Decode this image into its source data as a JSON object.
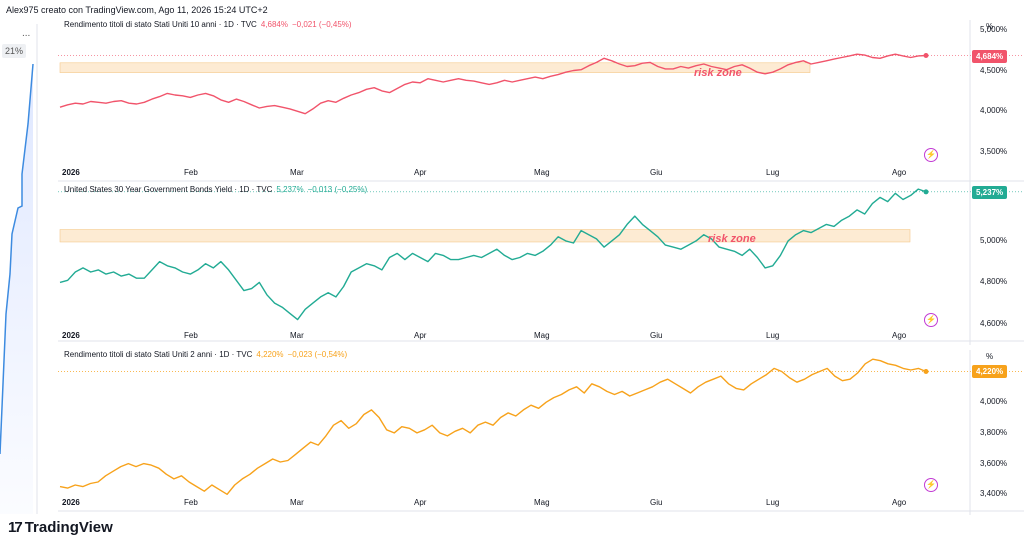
{
  "header": "Alex975 creato con TradingView.com, Ago 11, 2026 15:24 UTC+2",
  "left": {
    "pct": "21%",
    "dots": "...",
    "year": "2026"
  },
  "footer": {
    "brand": "TradingView",
    "logo": "17"
  },
  "risk_label": "risk zone",
  "chart_data": [
    {
      "type": "line",
      "title": "Rendimento titoli di stato Stati Uniti 10 anni · 1D · TVC",
      "value": "4,684%",
      "change": "−0,021 (−0,45%)",
      "color": "#f1546b",
      "unit": "%",
      "ylim": [
        3.28,
        5.12
      ],
      "yticks": [
        "5,000%",
        "4,500%",
        "4,000%",
        "3,500%"
      ],
      "ytick_values": [
        5.0,
        4.5,
        4.0,
        3.5
      ],
      "x_labels": [
        "2026",
        "Feb",
        "Mar",
        "Apr",
        "Mag",
        "Giu",
        "Lug",
        "Ago"
      ],
      "risk_zone": [
        4.475,
        4.595
      ],
      "values": [
        4.05,
        4.08,
        4.1,
        4.09,
        4.12,
        4.11,
        4.1,
        4.12,
        4.13,
        4.1,
        4.09,
        4.11,
        4.15,
        4.18,
        4.22,
        4.2,
        4.19,
        4.17,
        4.2,
        4.22,
        4.19,
        4.14,
        4.11,
        4.15,
        4.12,
        4.08,
        4.04,
        4.06,
        4.07,
        4.05,
        4.03,
        4.0,
        3.97,
        4.03,
        4.1,
        4.13,
        4.11,
        4.16,
        4.2,
        4.23,
        4.27,
        4.29,
        4.25,
        4.23,
        4.28,
        4.33,
        4.36,
        4.35,
        4.4,
        4.38,
        4.36,
        4.38,
        4.4,
        4.38,
        4.37,
        4.35,
        4.33,
        4.35,
        4.38,
        4.36,
        4.38,
        4.4,
        4.42,
        4.4,
        4.43,
        4.45,
        4.48,
        4.5,
        4.51,
        4.56,
        4.6,
        4.65,
        4.62,
        4.58,
        4.55,
        4.56,
        4.59,
        4.6,
        4.55,
        4.52,
        4.52,
        4.55,
        4.53,
        4.56,
        4.58,
        4.55,
        4.53,
        4.51,
        4.55,
        4.57,
        4.53,
        4.48,
        4.46,
        4.48,
        4.52,
        4.57,
        4.6,
        4.62,
        4.58,
        4.6,
        4.62,
        4.64,
        4.66,
        4.68,
        4.7,
        4.69,
        4.66,
        4.65,
        4.68,
        4.7,
        4.68,
        4.66,
        4.68,
        4.684
      ]
    },
    {
      "type": "line",
      "title": "United States 30 Year Government Bonds Yield · 1D · TVC",
      "value": "5,237%",
      "change": "−0,013 (−0,25%)",
      "color": "#22ab94",
      "unit": "%",
      "ylim": [
        4.57,
        5.27
      ],
      "yticks": [
        "5,200%",
        "5,000%",
        "4,800%",
        "4,600%"
      ],
      "ytick_values": [
        5.2,
        5.0,
        4.8,
        4.6
      ],
      "x_labels": [
        "2026",
        "Feb",
        "Mar",
        "Apr",
        "Mag",
        "Giu",
        "Lug",
        "Ago"
      ],
      "risk_zone": [
        4.995,
        5.055
      ],
      "values": [
        4.8,
        4.81,
        4.85,
        4.87,
        4.85,
        4.86,
        4.84,
        4.85,
        4.83,
        4.84,
        4.82,
        4.82,
        4.86,
        4.9,
        4.88,
        4.87,
        4.85,
        4.84,
        4.86,
        4.89,
        4.87,
        4.9,
        4.86,
        4.81,
        4.76,
        4.77,
        4.8,
        4.74,
        4.7,
        4.68,
        4.65,
        4.62,
        4.67,
        4.7,
        4.73,
        4.75,
        4.73,
        4.78,
        4.85,
        4.87,
        4.89,
        4.88,
        4.86,
        4.92,
        4.94,
        4.91,
        4.94,
        4.92,
        4.9,
        4.94,
        4.93,
        4.91,
        4.91,
        4.92,
        4.93,
        4.92,
        4.94,
        4.96,
        4.93,
        4.91,
        4.92,
        4.94,
        4.93,
        4.95,
        4.98,
        5.02,
        5.0,
        4.99,
        5.05,
        5.03,
        5.01,
        4.97,
        5.0,
        5.03,
        5.08,
        5.12,
        5.08,
        5.05,
        5.02,
        4.98,
        4.97,
        4.96,
        4.98,
        5.0,
        5.03,
        5.01,
        4.97,
        4.96,
        4.95,
        4.93,
        4.96,
        4.92,
        4.87,
        4.88,
        4.93,
        5.0,
        5.03,
        5.05,
        5.04,
        5.06,
        5.08,
        5.07,
        5.1,
        5.12,
        5.15,
        5.13,
        5.18,
        5.21,
        5.19,
        5.23,
        5.2,
        5.22,
        5.25,
        5.237
      ]
    },
    {
      "type": "line",
      "title": "Rendimento titoli di stato Stati Uniti 2 anni · 1D · TVC",
      "value": "4,220%",
      "change": "−0,023 (−0,54%)",
      "color": "#f7a21b",
      "unit": "%",
      "ylim": [
        3.33,
        4.34
      ],
      "yticks": [
        "4,000%",
        "3,800%",
        "3,600%",
        "3,400%"
      ],
      "ytick_values": [
        4.0,
        3.8,
        3.6,
        3.4
      ],
      "x_labels": [
        "2026",
        "Feb",
        "Mar",
        "Apr",
        "Mag",
        "Giu",
        "Lug",
        "Ago"
      ],
      "values": [
        3.45,
        3.44,
        3.46,
        3.45,
        3.47,
        3.48,
        3.52,
        3.55,
        3.58,
        3.6,
        3.58,
        3.6,
        3.59,
        3.57,
        3.53,
        3.5,
        3.52,
        3.48,
        3.45,
        3.42,
        3.46,
        3.43,
        3.4,
        3.46,
        3.5,
        3.53,
        3.57,
        3.6,
        3.63,
        3.61,
        3.62,
        3.66,
        3.7,
        3.74,
        3.72,
        3.78,
        3.85,
        3.88,
        3.83,
        3.86,
        3.92,
        3.95,
        3.9,
        3.82,
        3.8,
        3.84,
        3.83,
        3.8,
        3.82,
        3.85,
        3.8,
        3.78,
        3.81,
        3.83,
        3.8,
        3.85,
        3.87,
        3.85,
        3.9,
        3.93,
        3.91,
        3.95,
        3.98,
        3.96,
        4.0,
        4.03,
        4.05,
        4.08,
        4.1,
        4.06,
        4.12,
        4.1,
        4.07,
        4.05,
        4.07,
        4.04,
        4.06,
        4.08,
        4.1,
        4.13,
        4.15,
        4.12,
        4.09,
        4.06,
        4.1,
        4.13,
        4.15,
        4.17,
        4.12,
        4.09,
        4.08,
        4.12,
        4.15,
        4.18,
        4.22,
        4.2,
        4.16,
        4.13,
        4.15,
        4.18,
        4.2,
        4.22,
        4.17,
        4.14,
        4.15,
        4.19,
        4.25,
        4.28,
        4.27,
        4.25,
        4.24,
        4.22,
        4.21,
        4.22,
        4.2
      ]
    }
  ]
}
